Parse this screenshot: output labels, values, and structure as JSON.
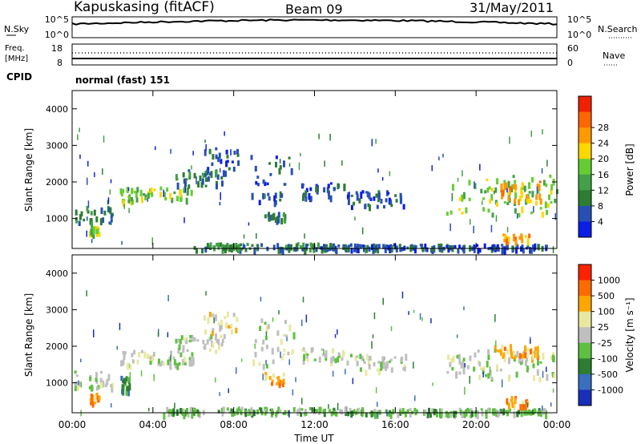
{
  "header": {
    "station": "Kapuskasing (fitACF)",
    "beam": "Beam 09",
    "date": "31/May/2011"
  },
  "noise_panel": {
    "left_label": "N.Sky",
    "left_ticks": [
      "10^5",
      "10^0"
    ],
    "right_label": "N.Search",
    "right_ticks": [
      "10^5",
      "10^0"
    ]
  },
  "freq_panel": {
    "label_line1": "Freq.",
    "label_line2": "[MHz]",
    "left_ticks": [
      "18",
      "8"
    ],
    "right_ticks": [
      "60",
      "0"
    ],
    "right_label": "Nave"
  },
  "cpid": {
    "label": "CPID",
    "mode": "normal (fast) 151"
  },
  "time_axis": {
    "label": "Time UT",
    "ticks": [
      "00:00",
      "04:00",
      "08:00",
      "12:00",
      "16:00",
      "20:00",
      "00:00"
    ]
  },
  "power_colorbar": {
    "label": "Power [dB]",
    "ticks": [
      "4",
      "8",
      "12",
      "16",
      "20",
      "24",
      "28"
    ],
    "colors": [
      "#0a1ee6",
      "#2850b4",
      "#2e7d32",
      "#43a047",
      "#66cc33",
      "#ffd700",
      "#ff9900",
      "#ff6600",
      "#ee2200"
    ]
  },
  "velocity_colorbar": {
    "label": "Velocity [m s⁻¹]",
    "ticks": [
      "1000",
      "500",
      "100",
      "25",
      "-25",
      "-100",
      "-500",
      "-1000"
    ],
    "colors": [
      "#1a2fb8",
      "#3a6ec0",
      "#2e7d32",
      "#5ec040",
      "#bfbfbf",
      "#e8e8a0",
      "#ffa500",
      "#ff6a00",
      "#ff2200"
    ]
  },
  "chart_data": [
    {
      "type": "heatmap",
      "title": "",
      "xlabel": "",
      "ylabel": "Slant Range [km]",
      "xlim": [
        0,
        24
      ],
      "ylim": [
        180,
        4500
      ],
      "yticks": [
        "1000",
        "2000",
        "3000",
        "4000"
      ],
      "colorbar": "Power [dB]",
      "regions": [
        {
          "t": [
            0.1,
            2.0
          ],
          "range": [
            900,
            1350
          ],
          "level": 2
        },
        {
          "t": [
            0.8,
            1.3
          ],
          "range": [
            600,
            800
          ],
          "level": 4
        },
        {
          "t": [
            2.3,
            6.0
          ],
          "range": [
            1500,
            1900
          ],
          "level": 4
        },
        {
          "t": [
            5.0,
            7.5
          ],
          "range": [
            1900,
            2350
          ],
          "level": 2
        },
        {
          "t": [
            6.5,
            8.2
          ],
          "range": [
            2300,
            2950
          ],
          "level": 1
        },
        {
          "t": [
            8.8,
            11.0
          ],
          "range": [
            1500,
            2800
          ],
          "level": 1
        },
        {
          "t": [
            11.3,
            13.5
          ],
          "range": [
            1600,
            2000
          ],
          "level": 1
        },
        {
          "t": [
            13.5,
            16.5
          ],
          "range": [
            1350,
            1800
          ],
          "level": 1
        },
        {
          "t": [
            9.5,
            10.5
          ],
          "range": [
            1000,
            1200
          ],
          "level": 2
        },
        {
          "t": [
            6.0,
            13.0
          ],
          "range": [
            180,
            350
          ],
          "level": 2
        },
        {
          "t": [
            12.0,
            23.5
          ],
          "range": [
            180,
            320
          ],
          "level": 1
        },
        {
          "t": [
            18.5,
            24.0
          ],
          "range": [
            1150,
            2200
          ],
          "level": 4
        },
        {
          "t": [
            21.2,
            23.2
          ],
          "range": [
            1500,
            2050
          ],
          "level": 6
        },
        {
          "t": [
            21.3,
            22.6
          ],
          "range": [
            400,
            600
          ],
          "level": 6
        }
      ]
    },
    {
      "type": "heatmap",
      "title": "",
      "xlabel": "Time UT",
      "ylabel": "Slant Range [km]",
      "xlim": [
        0,
        24
      ],
      "ylim": [
        180,
        4500
      ],
      "yticks": [
        "1000",
        "2000",
        "3000",
        "4000"
      ],
      "colorbar": "Velocity [m s⁻¹]",
      "regions": [
        {
          "t": [
            0.1,
            2.0
          ],
          "range": [
            900,
            1350
          ],
          "level": 4
        },
        {
          "t": [
            0.8,
            1.3
          ],
          "range": [
            500,
            750
          ],
          "level": 6
        },
        {
          "t": [
            2.3,
            2.8
          ],
          "range": [
            800,
            1200
          ],
          "level": 2
        },
        {
          "t": [
            2.3,
            6.0
          ],
          "range": [
            1500,
            1900
          ],
          "level": 4
        },
        {
          "t": [
            5.0,
            7.5
          ],
          "range": [
            1900,
            2350
          ],
          "level": 4
        },
        {
          "t": [
            6.5,
            8.2
          ],
          "range": [
            2300,
            2950
          ],
          "level": 5
        },
        {
          "t": [
            8.8,
            11.0
          ],
          "range": [
            1500,
            2800
          ],
          "level": 4
        },
        {
          "t": [
            9.5,
            10.5
          ],
          "range": [
            1000,
            1300
          ],
          "level": 6
        },
        {
          "t": [
            11.3,
            13.5
          ],
          "range": [
            1600,
            2000
          ],
          "level": 4
        },
        {
          "t": [
            13.5,
            16.5
          ],
          "range": [
            1350,
            1800
          ],
          "level": 4
        },
        {
          "t": [
            4.5,
            14.5
          ],
          "range": [
            180,
            350
          ],
          "level": 3
        },
        {
          "t": [
            14.5,
            23.5
          ],
          "range": [
            180,
            320
          ],
          "level": 3
        },
        {
          "t": [
            18.5,
            24.0
          ],
          "range": [
            1150,
            2000
          ],
          "level": 4
        },
        {
          "t": [
            20.8,
            23.5
          ],
          "range": [
            1700,
            2100
          ],
          "level": 6
        },
        {
          "t": [
            21.3,
            22.6
          ],
          "range": [
            400,
            650
          ],
          "level": 6
        }
      ]
    }
  ]
}
